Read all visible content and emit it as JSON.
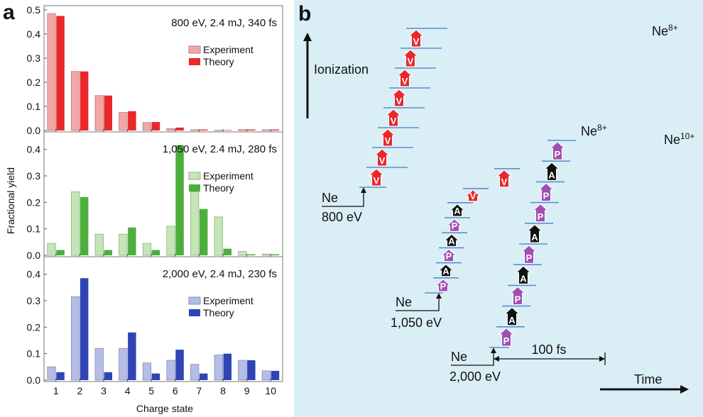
{
  "panel_a_letter": "a",
  "panel_b_letter": "b",
  "chart_data": [
    {
      "type": "bar",
      "title": "800 eV, 2.4 mJ, 340 fs",
      "xlabel": "Charge state",
      "ylabel": "Fractional yield",
      "categories": [
        "1",
        "2",
        "3",
        "4",
        "5",
        "6",
        "7",
        "8",
        "9",
        "10"
      ],
      "ylim": [
        0,
        0.5
      ],
      "yticks": [
        "0.0",
        "0.1",
        "0.2",
        "0.3",
        "0.4",
        "0.5"
      ],
      "legend_position": "top-right",
      "series": [
        {
          "name": "Experiment",
          "color": "#f4a6a6",
          "values": [
            0.485,
            0.245,
            0.145,
            0.075,
            0.033,
            0.008,
            0.003,
            0.001,
            0.004,
            0.003
          ]
        },
        {
          "name": "Theory",
          "color": "#e8282a",
          "values": [
            0.475,
            0.245,
            0.145,
            0.08,
            0.035,
            0.012,
            0.004,
            0.002,
            0.004,
            0.004
          ]
        }
      ]
    },
    {
      "type": "bar",
      "title": "1,050 eV, 2.4 mJ, 280 fs",
      "xlabel": "Charge state",
      "ylabel": "Fractional yield",
      "categories": [
        "1",
        "2",
        "3",
        "4",
        "5",
        "6",
        "7",
        "8",
        "9",
        "10"
      ],
      "ylim": [
        0,
        0.45
      ],
      "yticks": [
        "0.0",
        "0.1",
        "0.2",
        "0.3",
        "0.4"
      ],
      "legend_position": "top-right",
      "series": [
        {
          "name": "Experiment",
          "color": "#c4e6b6",
          "values": [
            0.045,
            0.24,
            0.08,
            0.08,
            0.045,
            0.11,
            0.24,
            0.145,
            0.015,
            0.005
          ]
        },
        {
          "name": "Theory",
          "color": "#4caf3c",
          "values": [
            0.02,
            0.22,
            0.02,
            0.105,
            0.02,
            0.415,
            0.175,
            0.025,
            0.004,
            0.004
          ]
        }
      ]
    },
    {
      "type": "bar",
      "title": "2,000 eV, 2.4 mJ, 230 fs",
      "xlabel": "Charge state",
      "ylabel": "Fractional yield",
      "categories": [
        "1",
        "2",
        "3",
        "4",
        "5",
        "6",
        "7",
        "8",
        "9",
        "10"
      ],
      "ylim": [
        0,
        0.45
      ],
      "yticks": [
        "0.0",
        "0.1",
        "0.2",
        "0.3",
        "0.4"
      ],
      "legend_position": "top-right",
      "series": [
        {
          "name": "Experiment",
          "color": "#b4bde8",
          "values": [
            0.05,
            0.315,
            0.12,
            0.12,
            0.065,
            0.075,
            0.06,
            0.095,
            0.075,
            0.035
          ]
        },
        {
          "name": "Theory",
          "color": "#2f45b4",
          "values": [
            0.03,
            0.385,
            0.03,
            0.18,
            0.025,
            0.115,
            0.025,
            0.1,
            0.075,
            0.035
          ]
        }
      ]
    }
  ],
  "diagram": {
    "ionization_label": "Ionization",
    "time_label": "Time",
    "scale_bar_label": "100 fs",
    "ion_symbol": "Ne",
    "paths": [
      {
        "name": "800 eV",
        "energy_label": "800 eV",
        "final_label": "Ne",
        "final_charge": "8+",
        "steps": [
          "V",
          "V",
          "V",
          "V",
          "V",
          "V",
          "V",
          "V"
        ]
      },
      {
        "name": "1,050 eV",
        "energy_label": "1,050 eV",
        "final_label": "Ne",
        "final_charge": "8+",
        "steps": [
          "P",
          "A",
          "P",
          "A",
          "P",
          "A",
          "V",
          "V"
        ]
      },
      {
        "name": "2,000 eV",
        "energy_label": "2,000 eV",
        "final_label": "Ne",
        "final_charge": "10+",
        "steps": [
          "P",
          "A",
          "P",
          "A",
          "P",
          "A",
          "P",
          "P",
          "A",
          "P"
        ]
      }
    ],
    "step_colors": {
      "V": "#e8282a",
      "P": "#a24fb4",
      "A": "#111111"
    },
    "level_color": "#5b8fd0",
    "background_color": "#daeef6"
  }
}
